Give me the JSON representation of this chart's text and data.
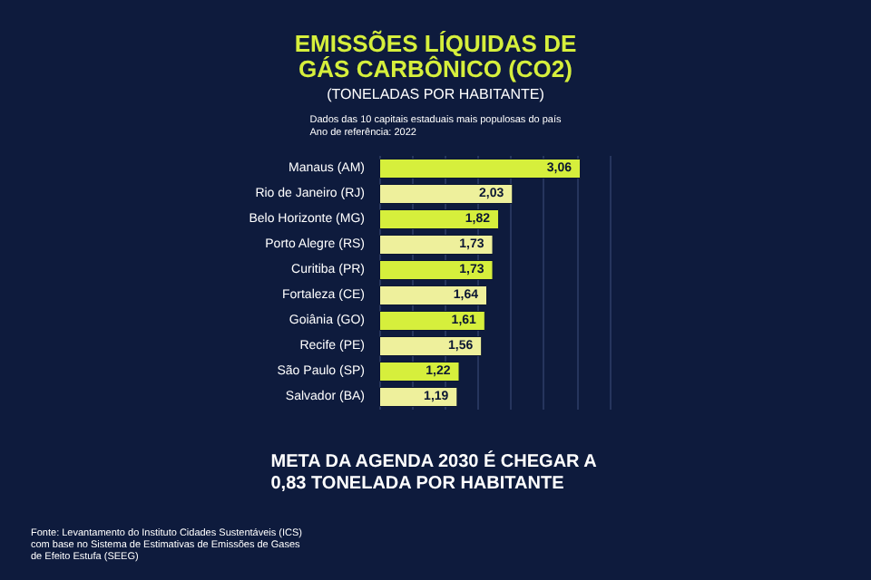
{
  "chart_data": {
    "type": "bar",
    "orientation": "horizontal",
    "title": "EMISSÕES LÍQUIDAS DE\nGÁS CARBÔNICO (CO2)",
    "subtitle": "(TONELADAS POR HABITANTE)",
    "annotations": [
      "Dados das 10 capitais estaduais mais populosas do país\nAno de referência: 2022",
      "META DA AGENDA 2030 É CHEGAR A\n0,83 TONELADA POR HABITANTE",
      "Fonte: Levantamento do Instituto Cidades Sustentáveis (ICS)\ncom base no Sistema de Estimativas de Emissões de Gases\nde Efeito Estufa (SEEG)"
    ],
    "categories": [
      "Manaus (AM)",
      "Rio de Janeiro (RJ)",
      "Belo Horizonte (MG)",
      "Porto Alegre (RS)",
      "Curitiba (PR)",
      "Fortaleza (CE)",
      "Goiânia (GO)",
      "Recife (PE)",
      "São Paulo (SP)",
      "Salvador (BA)"
    ],
    "values": [
      3.06,
      2.03,
      1.82,
      1.73,
      1.73,
      1.64,
      1.61,
      1.56,
      1.22,
      1.19
    ],
    "colors": [
      "#d6ef3c",
      "#eef09c",
      "#d6ef3c",
      "#eef09c",
      "#d6ef3c",
      "#eef09c",
      "#d6ef3c",
      "#eef09c",
      "#d6ef3c",
      "#eef09c"
    ],
    "value_labels": [
      "3,06",
      "2,03",
      "1,82",
      "1,73",
      "1,73",
      "1,64",
      "1,61",
      "1,56",
      "1,22",
      "1,19"
    ],
    "xlim": [
      0,
      3.5
    ],
    "xticks": [
      {
        "value": 0,
        "label": null
      },
      {
        "value": 0.5,
        "label": null
      },
      {
        "value": 1,
        "label": null
      },
      {
        "value": 1.5,
        "label": null
      },
      {
        "value": 2,
        "label": null
      },
      {
        "value": 2.5,
        "label": null
      },
      {
        "value": 3,
        "label": null
      },
      {
        "value": 3.5,
        "label": null
      }
    ],
    "grid": "x",
    "tick_labels": "y"
  }
}
